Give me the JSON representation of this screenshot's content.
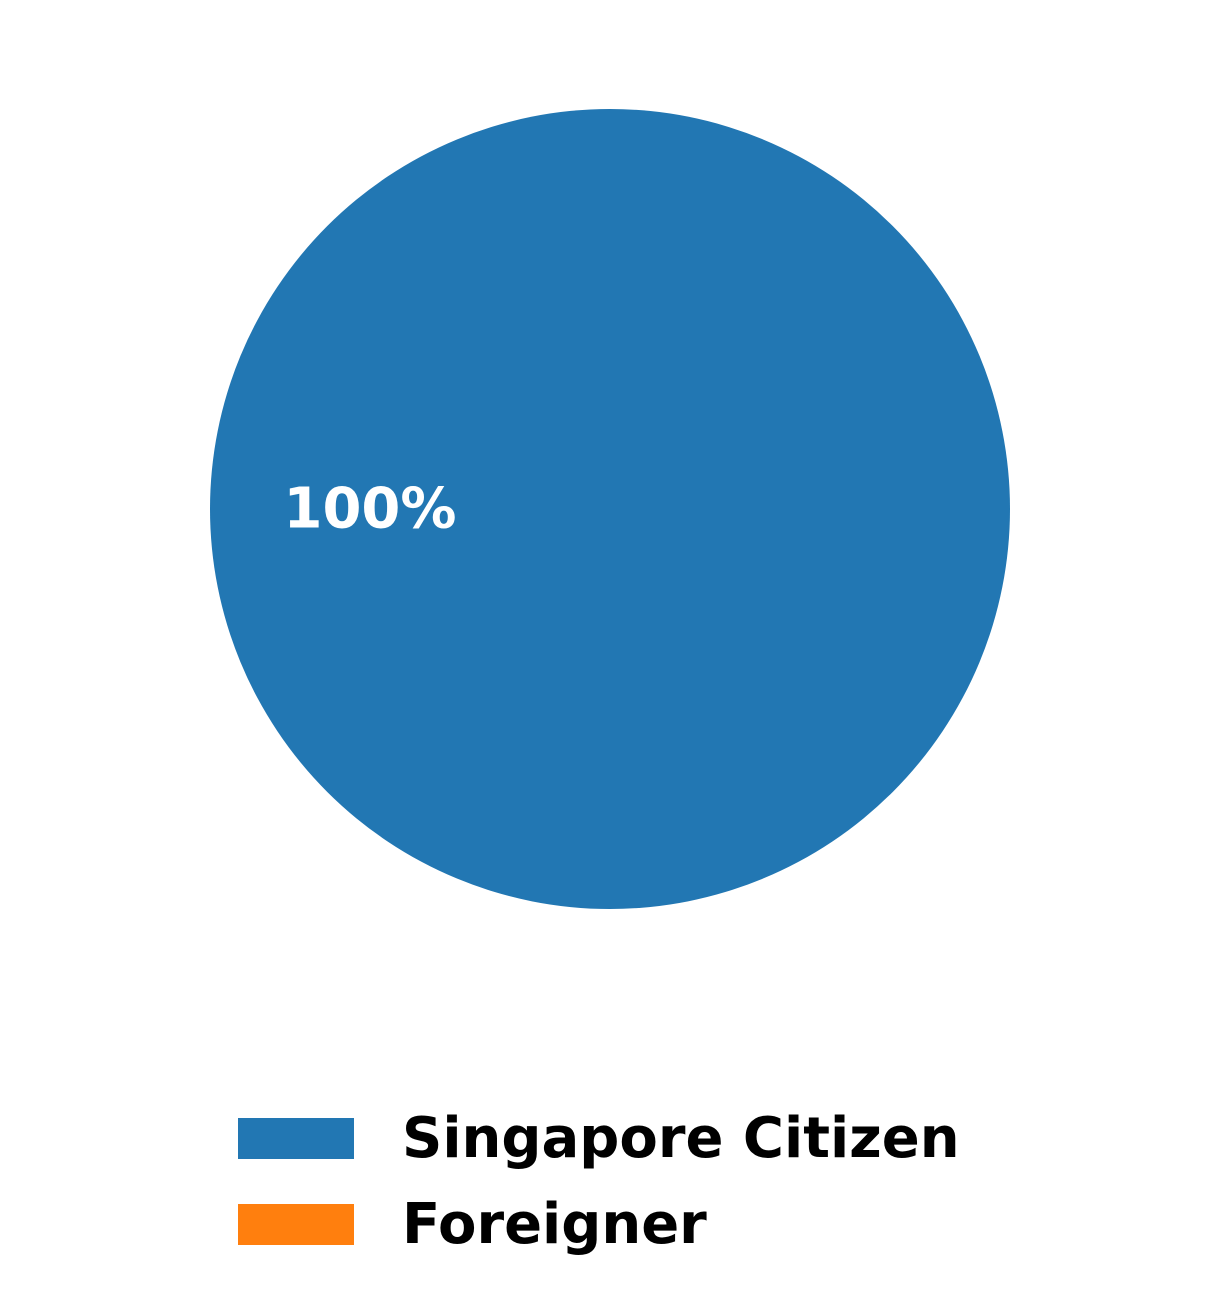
{
  "chart_data": {
    "type": "pie",
    "slices": [
      {
        "label": "Singapore Citizen",
        "value": 100,
        "color": "#2277b3"
      },
      {
        "label": "Foreigner",
        "value": 0,
        "color": "#ff7f0e"
      }
    ],
    "data_labels": [
      "100%"
    ],
    "legend": {
      "position": "bottom",
      "entries": [
        "Singapore Citizen",
        "Foreigner"
      ]
    }
  }
}
